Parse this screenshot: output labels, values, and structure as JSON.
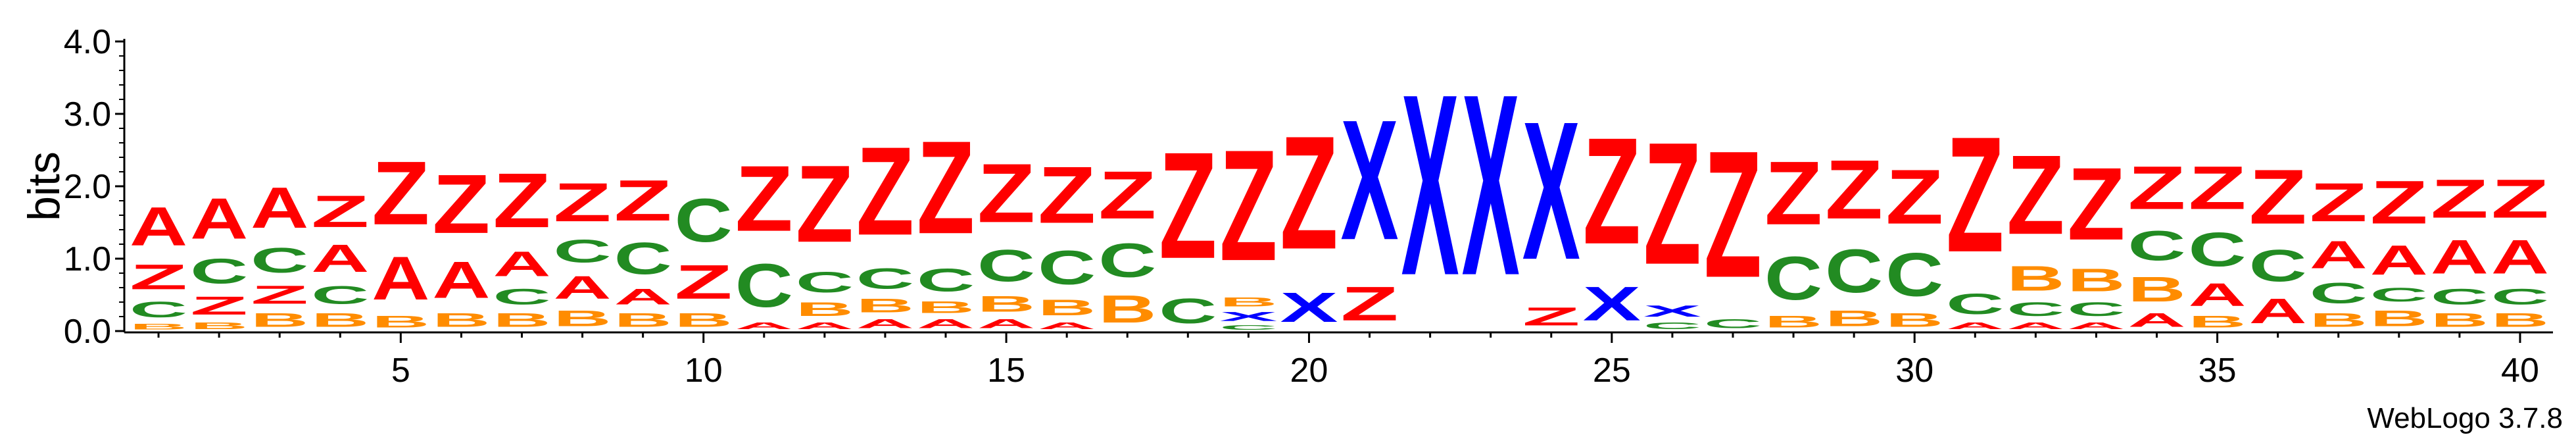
{
  "chart_data": {
    "type": "sequence_logo",
    "ylabel": "bits",
    "ylim": [
      0,
      4.0
    ],
    "yticks": [
      "0.0",
      "1.0",
      "2.0",
      "3.0",
      "4.0"
    ],
    "xticks": [
      5,
      10,
      15,
      20,
      25,
      30,
      35,
      40
    ],
    "credit": "WebLogo 3.7.8",
    "colors": {
      "A": "#ff0000",
      "B": "#ff8c00",
      "C": "#228b22",
      "X": "#0000ff",
      "Z": "#ff0000"
    },
    "positions": [
      {
        "pos": 1,
        "stack": [
          [
            "B",
            0.12
          ],
          [
            "C",
            0.35
          ],
          [
            "Z",
            0.55
          ],
          [
            "A",
            0.85
          ]
        ]
      },
      {
        "pos": 2,
        "stack": [
          [
            "B",
            0.15
          ],
          [
            "Z",
            0.4
          ],
          [
            "C",
            0.55
          ],
          [
            "A",
            0.9
          ]
        ]
      },
      {
        "pos": 3,
        "stack": [
          [
            "B",
            0.3
          ],
          [
            "Z",
            0.4
          ],
          [
            "C",
            0.55
          ],
          [
            "A",
            0.9
          ]
        ]
      },
      {
        "pos": 4,
        "stack": [
          [
            "B",
            0.3
          ],
          [
            "C",
            0.4
          ],
          [
            "A",
            0.6
          ],
          [
            "Z",
            0.7
          ]
        ]
      },
      {
        "pos": 5,
        "stack": [
          [
            "B",
            0.25
          ],
          [
            "A",
            0.95
          ],
          [
            "Z",
            1.4
          ]
        ]
      },
      {
        "pos": 6,
        "stack": [
          [
            "B",
            0.3
          ],
          [
            "A",
            0.8
          ],
          [
            "Z",
            1.3
          ]
        ]
      },
      {
        "pos": 7,
        "stack": [
          [
            "B",
            0.3
          ],
          [
            "C",
            0.35
          ],
          [
            "A",
            0.55
          ],
          [
            "Z",
            1.2
          ]
        ]
      },
      {
        "pos": 8,
        "stack": [
          [
            "B",
            0.35
          ],
          [
            "A",
            0.5
          ],
          [
            "C",
            0.5
          ],
          [
            "Z",
            0.85
          ]
        ]
      },
      {
        "pos": 9,
        "stack": [
          [
            "B",
            0.3
          ],
          [
            "A",
            0.35
          ],
          [
            "C",
            0.7
          ],
          [
            "Z",
            0.9
          ]
        ]
      },
      {
        "pos": 10,
        "stack": [
          [
            "B",
            0.3
          ],
          [
            "Z",
            0.75
          ],
          [
            "C",
            0.95
          ]
        ]
      },
      {
        "pos": 11,
        "stack": [
          [
            "A",
            0.15
          ],
          [
            "C",
            0.95
          ],
          [
            "Z",
            1.45
          ]
        ]
      },
      {
        "pos": 12,
        "stack": [
          [
            "A",
            0.15
          ],
          [
            "B",
            0.3
          ],
          [
            "C",
            0.45
          ],
          [
            "Z",
            1.7
          ]
        ]
      },
      {
        "pos": 13,
        "stack": [
          [
            "A",
            0.2
          ],
          [
            "B",
            0.3
          ],
          [
            "C",
            0.45
          ],
          [
            "Z",
            1.95
          ]
        ]
      },
      {
        "pos": 14,
        "stack": [
          [
            "A",
            0.2
          ],
          [
            "B",
            0.25
          ],
          [
            "C",
            0.5
          ],
          [
            "Z",
            2.05
          ]
        ]
      },
      {
        "pos": 15,
        "stack": [
          [
            "A",
            0.2
          ],
          [
            "B",
            0.35
          ],
          [
            "C",
            0.7
          ],
          [
            "Z",
            1.3
          ]
        ]
      },
      {
        "pos": 16,
        "stack": [
          [
            "A",
            0.15
          ],
          [
            "B",
            0.35
          ],
          [
            "C",
            0.75
          ],
          [
            "Z",
            1.25
          ]
        ]
      },
      {
        "pos": 17,
        "stack": [
          [
            "B",
            0.6
          ],
          [
            "C",
            0.75
          ],
          [
            "Z",
            1.05
          ]
        ]
      },
      {
        "pos": 18,
        "stack": [
          [
            "C",
            0.55
          ],
          [
            "Z",
            2.35
          ]
        ]
      },
      {
        "pos": 19,
        "stack": [
          [
            "C",
            0.1
          ],
          [
            "X",
            0.2
          ],
          [
            "B",
            0.2
          ],
          [
            "Z",
            2.45
          ]
        ]
      },
      {
        "pos": 20,
        "stack": [
          [
            "X",
            0.65
          ],
          [
            "Z",
            2.5
          ]
        ]
      },
      {
        "pos": 21,
        "stack": [
          [
            "Z",
            0.75
          ],
          [
            "X",
            2.65
          ]
        ]
      },
      {
        "pos": 22,
        "stack": [
          [
            "X",
            4.0
          ]
        ]
      },
      {
        "pos": 23,
        "stack": [
          [
            "X",
            4.0
          ]
        ]
      },
      {
        "pos": 24,
        "stack": [
          [
            "Z",
            0.4
          ],
          [
            "X",
            3.05
          ]
        ]
      },
      {
        "pos": 25,
        "stack": [
          [
            "X",
            0.75
          ],
          [
            "Z",
            2.35
          ]
        ]
      },
      {
        "pos": 26,
        "stack": [
          [
            "C",
            0.15
          ],
          [
            "X",
            0.25
          ],
          [
            "Z",
            2.7
          ]
        ]
      },
      {
        "pos": 27,
        "stack": [
          [
            "C",
            0.2
          ],
          [
            "Z",
            2.8
          ]
        ]
      },
      {
        "pos": 28,
        "stack": [
          [
            "B",
            0.25
          ],
          [
            "C",
            0.95
          ],
          [
            "Z",
            1.4
          ]
        ]
      },
      {
        "pos": 29,
        "stack": [
          [
            "B",
            0.35
          ],
          [
            "C",
            0.95
          ],
          [
            "Z",
            1.3
          ]
        ]
      },
      {
        "pos": 30,
        "stack": [
          [
            "B",
            0.3
          ],
          [
            "C",
            0.95
          ],
          [
            "Z",
            1.2
          ]
        ]
      },
      {
        "pos": 31,
        "stack": [
          [
            "A",
            0.15
          ],
          [
            "C",
            0.45
          ],
          [
            "Z",
            2.55
          ]
        ]
      },
      {
        "pos": 32,
        "stack": [
          [
            "A",
            0.15
          ],
          [
            "C",
            0.3
          ],
          [
            "B",
            0.55
          ],
          [
            "Z",
            1.75
          ]
        ]
      },
      {
        "pos": 33,
        "stack": [
          [
            "A",
            0.15
          ],
          [
            "C",
            0.3
          ],
          [
            "B",
            0.5
          ],
          [
            "Z",
            1.6
          ]
        ]
      },
      {
        "pos": 34,
        "stack": [
          [
            "A",
            0.3
          ],
          [
            "B",
            0.55
          ],
          [
            "C",
            0.65
          ],
          [
            "Z",
            0.95
          ]
        ]
      },
      {
        "pos": 35,
        "stack": [
          [
            "B",
            0.25
          ],
          [
            "A",
            0.5
          ],
          [
            "C",
            0.75
          ],
          [
            "Z",
            0.95
          ]
        ]
      },
      {
        "pos": 36,
        "stack": [
          [
            "A",
            0.55
          ],
          [
            "C",
            0.7
          ],
          [
            "Z",
            1.2
          ]
        ]
      },
      {
        "pos": 37,
        "stack": [
          [
            "B",
            0.3
          ],
          [
            "C",
            0.45
          ],
          [
            "A",
            0.6
          ],
          [
            "Z",
            0.85
          ]
        ]
      },
      {
        "pos": 38,
        "stack": [
          [
            "B",
            0.35
          ],
          [
            "C",
            0.3
          ],
          [
            "A",
            0.65
          ],
          [
            "Z",
            0.95
          ]
        ]
      },
      {
        "pos": 39,
        "stack": [
          [
            "B",
            0.3
          ],
          [
            "C",
            0.35
          ],
          [
            "A",
            0.75
          ],
          [
            "Z",
            0.85
          ]
        ]
      },
      {
        "pos": 40,
        "stack": [
          [
            "B",
            0.3
          ],
          [
            "C",
            0.35
          ],
          [
            "A",
            0.75
          ],
          [
            "Z",
            0.85
          ]
        ]
      }
    ]
  }
}
